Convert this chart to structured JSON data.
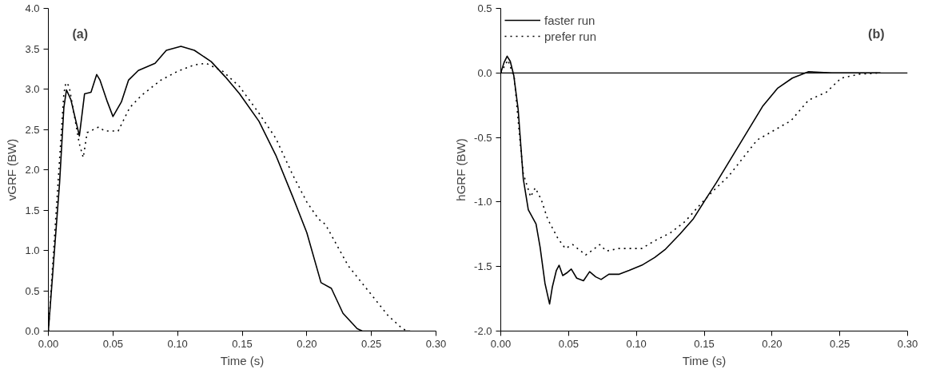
{
  "chart_data": [
    {
      "type": "line",
      "title": "(a)",
      "xlabel": "Time (s)",
      "ylabel": "vGRF (BW)",
      "xlim": [
        0,
        0.3
      ],
      "ylim": [
        0,
        4
      ],
      "xticks": [
        {
          "value": 0,
          "label": "0.00"
        },
        {
          "value": 0.05,
          "label": "0.05"
        },
        {
          "value": 0.1,
          "label": "0.10"
        },
        {
          "value": 0.15,
          "label": "0.15"
        },
        {
          "value": 0.2,
          "label": "0.20"
        },
        {
          "value": 0.25,
          "label": "0.25"
        },
        {
          "value": 0.3,
          "label": "0.30"
        }
      ],
      "yticks": [
        {
          "value": 0,
          "label": "0.0"
        },
        {
          "value": 0.5,
          "label": "0.5"
        },
        {
          "value": 1,
          "label": "1.0"
        },
        {
          "value": 1.5,
          "label": "1.5"
        },
        {
          "value": 2,
          "label": "2.0"
        },
        {
          "value": 2.5,
          "label": "2.5"
        },
        {
          "value": 3,
          "label": "3.0"
        },
        {
          "value": 3.5,
          "label": "3.5"
        },
        {
          "value": 4,
          "label": "4.0"
        }
      ],
      "grid": false,
      "legend": false,
      "series": [
        {
          "color": "#000000",
          "line_style": "solid",
          "x": [
            0,
            0.0087,
            0.012,
            0.014,
            0.0174,
            0.024,
            0.028,
            0.033,
            0.0374,
            0.04,
            0.0457,
            0.05,
            0.0565,
            0.062,
            0.0696,
            0.0826,
            0.0913,
            0.1026,
            0.113,
            0.126,
            0.137,
            0.148,
            0.163,
            0.176,
            0.189,
            0.2,
            0.211,
            0.219,
            0.228,
            0.239,
            0.243,
            0.28
          ],
          "values": [
            0,
            1.84,
            2.77,
            2.99,
            2.87,
            2.42,
            2.94,
            2.96,
            3.18,
            3.11,
            2.84,
            2.66,
            2.84,
            3.11,
            3.23,
            3.32,
            3.48,
            3.53,
            3.48,
            3.34,
            3.15,
            2.94,
            2.6,
            2.18,
            1.67,
            1.22,
            0.6,
            0.53,
            0.22,
            0.03,
            0,
            0
          ]
        },
        {
          "color": "#000000",
          "line_style": "dotted",
          "x": [
            0,
            0.012,
            0.0135,
            0.016,
            0.024,
            0.027,
            0.03,
            0.039,
            0.0435,
            0.054,
            0.063,
            0.072,
            0.087,
            0.1,
            0.113,
            0.122,
            0.135,
            0.148,
            0.163,
            0.176,
            0.189,
            0.2,
            0.209,
            0.2145,
            0.232,
            0.25,
            0.263,
            0.274,
            0.278
          ],
          "values": [
            0,
            2.94,
            3.08,
            3.04,
            2.32,
            2.15,
            2.46,
            2.53,
            2.48,
            2.48,
            2.77,
            2.92,
            3.11,
            3.22,
            3.3,
            3.32,
            3.22,
            3.03,
            2.7,
            2.39,
            1.94,
            1.6,
            1.39,
            1.32,
            0.81,
            0.45,
            0.19,
            0.03,
            0
          ]
        }
      ]
    },
    {
      "type": "line",
      "title": "(b)",
      "xlabel": "Time (s)",
      "ylabel": "hGRF (BW)",
      "xlim": [
        0,
        0.3
      ],
      "ref_lines": [
        {
          "axis": "y",
          "value": 0,
          "color": "#000000"
        }
      ],
      "ylim": [
        -2,
        0.5
      ],
      "xticks": [
        {
          "value": 0,
          "label": "0.00"
        },
        {
          "value": 0.05,
          "label": "0.05"
        },
        {
          "value": 0.1,
          "label": "0.10"
        },
        {
          "value": 0.15,
          "label": "0.15"
        },
        {
          "value": 0.2,
          "label": "0.20"
        },
        {
          "value": 0.25,
          "label": "0.25"
        },
        {
          "value": 0.3,
          "label": "0.30"
        }
      ],
      "yticks": [
        {
          "value": -2,
          "label": "-2.0"
        },
        {
          "value": -1.5,
          "label": "-1.5"
        },
        {
          "value": -1,
          "label": "-1.0"
        },
        {
          "value": -0.5,
          "label": "-0.5"
        },
        {
          "value": 0,
          "label": "0.0"
        },
        {
          "value": 0.5,
          "label": "0.5"
        }
      ],
      "grid": false,
      "legend": "top left",
      "series": [
        {
          "name": "faster run",
          "color": "#000000",
          "line_style": "solid",
          "x": [
            0,
            0.0024,
            0.0047,
            0.007,
            0.0096,
            0.0128,
            0.0166,
            0.0203,
            0.026,
            0.029,
            0.0326,
            0.036,
            0.038,
            0.041,
            0.043,
            0.0457,
            0.0486,
            0.052,
            0.056,
            0.061,
            0.0655,
            0.07,
            0.074,
            0.0797,
            0.087,
            0.0947,
            0.104,
            0.1135,
            0.121,
            0.132,
            0.142,
            0.151,
            0.159,
            0.178,
            0.193,
            0.204,
            0.215,
            0.227,
            0.244,
            0.28
          ],
          "values": [
            0,
            0.08,
            0.13,
            0.09,
            -0.02,
            -0.28,
            -0.82,
            -1.06,
            -1.17,
            -1.35,
            -1.63,
            -1.79,
            -1.66,
            -1.53,
            -1.49,
            -1.57,
            -1.55,
            -1.52,
            -1.59,
            -1.61,
            -1.54,
            -1.58,
            -1.6,
            -1.56,
            -1.56,
            -1.53,
            -1.49,
            -1.43,
            -1.37,
            -1.25,
            -1.13,
            -0.98,
            -0.85,
            -0.52,
            -0.26,
            -0.12,
            -0.04,
            0.01,
            0,
            0
          ]
        },
        {
          "name": "prefer run",
          "color": "#000000",
          "line_style": "dotted",
          "x": [
            0,
            0.0053,
            0.01,
            0.0137,
            0.0166,
            0.022,
            0.0254,
            0.0298,
            0.0345,
            0.042,
            0.0476,
            0.053,
            0.0627,
            0.068,
            0.073,
            0.0778,
            0.087,
            0.104,
            0.1135,
            0.125,
            0.136,
            0.147,
            0.157,
            0.168,
            0.189,
            0.214,
            0.227,
            0.24,
            0.251,
            0.264,
            0.28
          ],
          "values": [
            0,
            0.1,
            -0.04,
            -0.47,
            -0.78,
            -0.96,
            -0.89,
            -0.98,
            -1.13,
            -1.28,
            -1.36,
            -1.33,
            -1.41,
            -1.37,
            -1.33,
            -1.38,
            -1.36,
            -1.36,
            -1.3,
            -1.24,
            -1.15,
            -1.02,
            -0.91,
            -0.8,
            -0.52,
            -0.37,
            -0.21,
            -0.15,
            -0.04,
            -0.01,
            0
          ]
        }
      ]
    }
  ]
}
